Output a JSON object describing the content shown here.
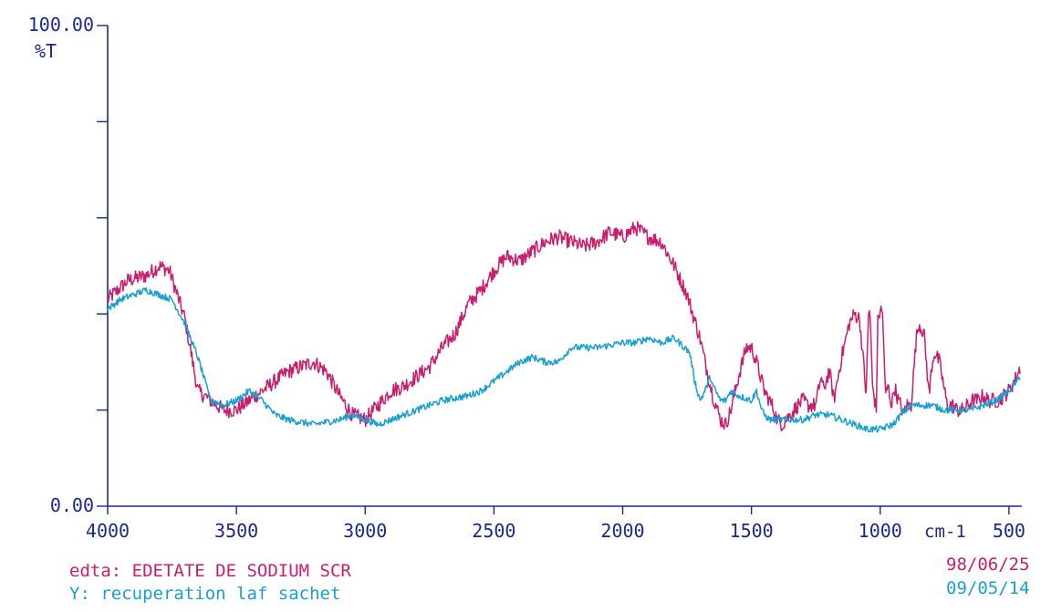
{
  "chart_data": {
    "type": "line",
    "ylabel": "%T",
    "xlabel": "cm-1",
    "ylim": [
      0,
      100
    ],
    "xlim": [
      4000,
      450
    ],
    "y_ticks": [
      0,
      20,
      40,
      60,
      80,
      100
    ],
    "y_tick_labels": {
      "top": "100.00",
      "bottom": "0.00"
    },
    "x_ticks": [
      4000,
      3500,
      3000,
      2500,
      2000,
      1500,
      1000,
      500
    ],
    "x_tick_labels": [
      "4000",
      "3500",
      "3000",
      "2500",
      "2000",
      "1500",
      "1000",
      "500"
    ],
    "colors": {
      "axis": "#1a2a8a",
      "series_1": "#c81e6e",
      "series_2": "#1aa0d0"
    },
    "grid": false,
    "series": [
      {
        "name": "edta: EDETATE DE SODIUM SCR",
        "color": "#c81e6e",
        "noise": 1.6,
        "x": [
          4000,
          3920,
          3850,
          3800,
          3760,
          3700,
          3650,
          3600,
          3550,
          3500,
          3400,
          3300,
          3200,
          3150,
          3100,
          3050,
          3000,
          2950,
          2900,
          2850,
          2800,
          2750,
          2700,
          2650,
          2600,
          2550,
          2500,
          2450,
          2400,
          2350,
          2300,
          2250,
          2200,
          2150,
          2100,
          2050,
          2000,
          1950,
          1900,
          1850,
          1800,
          1750,
          1700,
          1680,
          1650,
          1620,
          1600,
          1580,
          1550,
          1520,
          1500,
          1480,
          1450,
          1420,
          1400,
          1380,
          1350,
          1320,
          1300,
          1280,
          1250,
          1230,
          1220,
          1210,
          1200,
          1190,
          1180,
          1150,
          1120,
          1100,
          1080,
          1065,
          1055,
          1045,
          1040,
          1030,
          1015,
          1010,
          1000,
          990,
          980,
          970,
          955,
          945,
          930,
          920,
          910,
          900,
          880,
          860,
          850,
          830,
          810,
          800,
          790,
          770,
          750,
          740,
          720,
          700,
          680,
          660,
          640,
          620,
          600,
          580,
          560,
          540,
          520,
          500,
          470,
          455
        ],
        "y": [
          43,
          47,
          48,
          50,
          49,
          39,
          24,
          22,
          20,
          20,
          24,
          28,
          30,
          28,
          23,
          19,
          18,
          21,
          24,
          25,
          27,
          29,
          33,
          36,
          42,
          45,
          49,
          52,
          51,
          53,
          55,
          56,
          55,
          54,
          55,
          57,
          56,
          58,
          56,
          55,
          50,
          44,
          35,
          30,
          23,
          18,
          17,
          20,
          27,
          33,
          33,
          30,
          24,
          21,
          18,
          17,
          19,
          21,
          22,
          21,
          21,
          27,
          24,
          26,
          28,
          26,
          22,
          31,
          38,
          40,
          39,
          30,
          23,
          40,
          41,
          25,
          20,
          38,
          41,
          40,
          23,
          25,
          21,
          25,
          22,
          21,
          19,
          21,
          21,
          35,
          38,
          36,
          23,
          29,
          32,
          30,
          24,
          21,
          21,
          20,
          20,
          21,
          22,
          22,
          23,
          22,
          22,
          22,
          23,
          24,
          27,
          29
        ]
      },
      {
        "name": "Y: recuperation laf sachet",
        "color": "#1aa0d0",
        "noise": 0.7,
        "x": [
          4000,
          3950,
          3900,
          3850,
          3800,
          3750,
          3700,
          3650,
          3600,
          3550,
          3500,
          3450,
          3400,
          3350,
          3300,
          3200,
          3100,
          3050,
          3000,
          2950,
          2900,
          2800,
          2700,
          2600,
          2550,
          2500,
          2450,
          2400,
          2350,
          2300,
          2250,
          2200,
          2100,
          2000,
          1950,
          1900,
          1850,
          1800,
          1780,
          1760,
          1740,
          1720,
          1700,
          1680,
          1660,
          1650,
          1620,
          1600,
          1580,
          1550,
          1500,
          1480,
          1460,
          1450,
          1430,
          1400,
          1350,
          1300,
          1250,
          1200,
          1150,
          1100,
          1050,
          1000,
          950,
          920,
          900,
          880,
          850,
          800,
          750,
          700,
          650,
          600,
          550,
          500,
          470,
          455
        ],
        "y": [
          41,
          43,
          44,
          45,
          44,
          43,
          38,
          31,
          22,
          21,
          22,
          24,
          22,
          19,
          18,
          17,
          18,
          19,
          18,
          17,
          18,
          20,
          22,
          23,
          24,
          26,
          28,
          30,
          31,
          30,
          30,
          33,
          33,
          34,
          34,
          35,
          34,
          35,
          34,
          33,
          32,
          26,
          22,
          24,
          27,
          25,
          22,
          22,
          24,
          23,
          22,
          24,
          20,
          19,
          18,
          18,
          18,
          18,
          19,
          19,
          18,
          17,
          16,
          16,
          17,
          19,
          20,
          21,
          21,
          21,
          20,
          20,
          20,
          21,
          22,
          24,
          26,
          27
        ]
      }
    ]
  },
  "footer": {
    "series_1_label": "edta: EDETATE DE SODIUM SCR",
    "series_2_label": "Y: recuperation laf sachet",
    "date_1": "98/06/25",
    "date_2": "09/05/14"
  }
}
